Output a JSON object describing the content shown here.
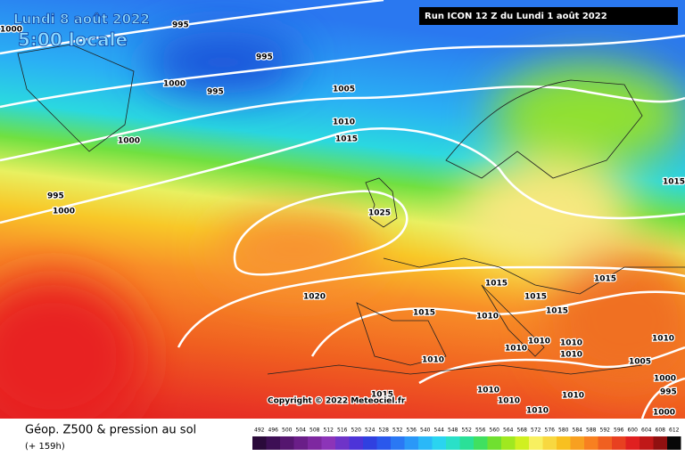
{
  "header": {
    "date": "Lundi 8 août 2022",
    "time": "5:00 locale",
    "run": "Run ICON 12 Z du Lundi 1 août 2022"
  },
  "copyright": "Copyright © 2022 Meteociel.fr",
  "isobar_labels": [
    "1000",
    "995",
    "995",
    "1000",
    "995",
    "1005",
    "1010",
    "1015",
    "1000",
    "995",
    "1000",
    "1025",
    "1020",
    "1015",
    "1015",
    "1015",
    "1015",
    "1015",
    "1010",
    "1010",
    "1010",
    "1010",
    "1010",
    "1010",
    "1010",
    "1005",
    "1010",
    "1010",
    "1010",
    "1010",
    "1015",
    "1015",
    "1000",
    "995",
    "1000"
  ],
  "footer": {
    "title": "Géop. Z500 & pression au sol",
    "lead": "(+ 159h)"
  },
  "legend": {
    "values": [
      492,
      496,
      500,
      504,
      508,
      512,
      516,
      520,
      524,
      528,
      532,
      536,
      540,
      544,
      548,
      552,
      556,
      560,
      564,
      568,
      572,
      576,
      580,
      584,
      588,
      592,
      596,
      600,
      604,
      608,
      612
    ],
    "colors": [
      "#2a0a3a",
      "#3d0f55",
      "#55166f",
      "#6a1e88",
      "#7e28a0",
      "#8c34b8",
      "#6e34c8",
      "#4d34d8",
      "#3040e0",
      "#2a58ec",
      "#2a78f4",
      "#2a98f8",
      "#2ab8f8",
      "#2ad4f0",
      "#2ae0c8",
      "#2ae098",
      "#40e060",
      "#70e030",
      "#a0e820",
      "#d0f020",
      "#f8f060",
      "#f8d840",
      "#f8c020",
      "#f8a020",
      "#f88020",
      "#f06020",
      "#e84020",
      "#e02020",
      "#c01818",
      "#901010",
      "#080808"
    ]
  }
}
